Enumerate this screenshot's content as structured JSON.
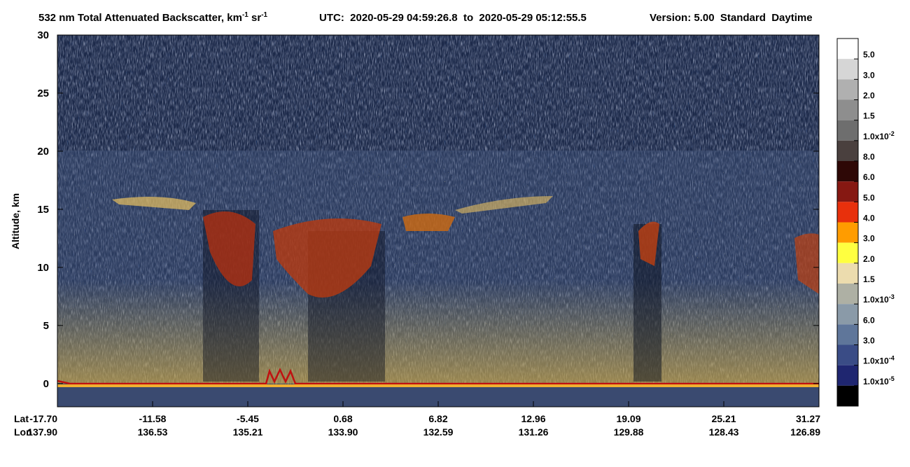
{
  "chart_data": {
    "type": "curtain",
    "title_parts": [
      "532 nm Total Attenuated Backscatter, km",
      "-1",
      " sr",
      "-1"
    ],
    "time_range": "UTC:  2020-05-29 04:59:26.8  to  2020-05-29 05:12:55.5",
    "version": "Version: 5.00  Standard  Daytime",
    "y_label": "Altitude, km",
    "ylim": [
      -2,
      30
    ],
    "yticks": [
      0,
      5,
      10,
      15,
      20,
      25,
      30
    ],
    "x_rows": [
      {
        "name": "Lat",
        "labels": [
          "-17.70",
          "-11.58",
          "-5.45",
          "0.68",
          "6.82",
          "12.96",
          "19.09",
          "25.21",
          "31.27"
        ]
      },
      {
        "name": "Lon",
        "labels": [
          "137.90",
          "136.53",
          "135.21",
          "133.90",
          "132.59",
          "131.26",
          "129.88",
          "128.43",
          "126.89"
        ]
      }
    ],
    "colorbar": {
      "colors": [
        "#ffffff",
        "#d6d6d6",
        "#b0b0b0",
        "#8e8e8e",
        "#6e6e6e",
        "#4a403e",
        "#2e0806",
        "#861812",
        "#e8300c",
        "#ff9c00",
        "#ffff40",
        "#ecdcae",
        "#aeb0a4",
        "#8a9aa8",
        "#5f769a",
        "#3a4c86",
        "#1f2670",
        "#000000"
      ],
      "labels": [
        {
          "label": "5.0"
        },
        {
          "label": "3.0"
        },
        {
          "label": "2.0"
        },
        {
          "label": "1.5"
        },
        {
          "label": "1.0x10",
          "exp": "-2"
        },
        {
          "label": "8.0"
        },
        {
          "label": "6.0"
        },
        {
          "label": "5.0"
        },
        {
          "label": "4.0"
        },
        {
          "label": "3.0"
        },
        {
          "label": "2.0"
        },
        {
          "label": "1.5"
        },
        {
          "label": "1.0x10",
          "exp": "-3"
        },
        {
          "label": "6.0"
        },
        {
          "label": "3.0"
        },
        {
          "label": "1.0x10",
          "exp": "-4"
        },
        {
          "label": "1.0x10",
          "exp": "-5"
        }
      ]
    }
  }
}
